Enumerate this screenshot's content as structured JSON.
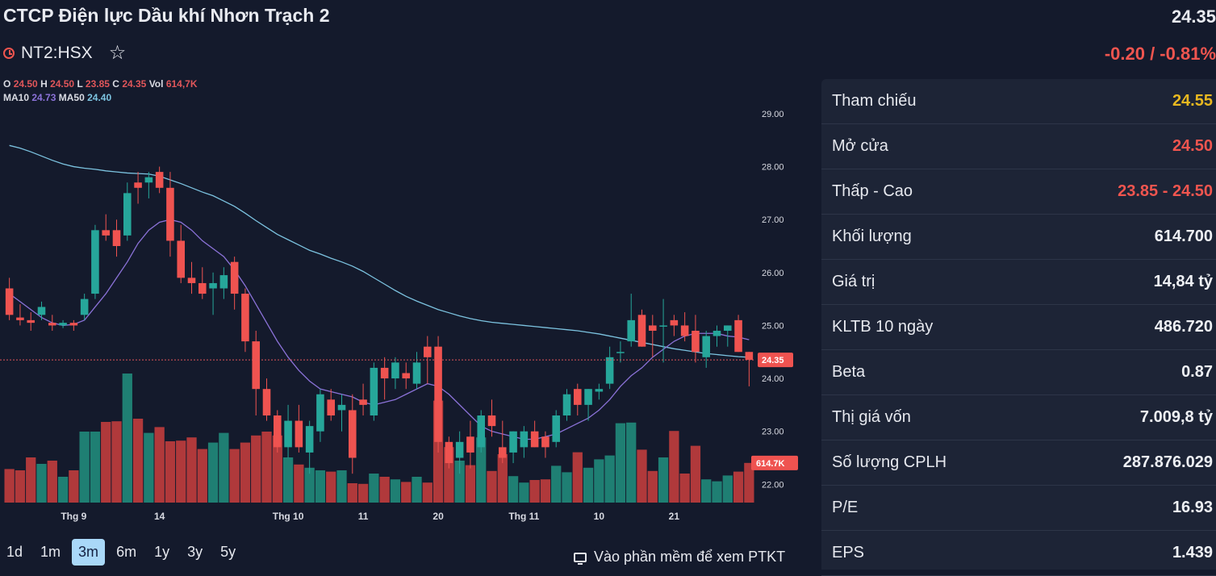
{
  "header": {
    "company": "CTCP Điện lực Dầu khí Nhơn Trạch 2",
    "price": "24.35",
    "symbol": "NT2:HSX",
    "change": "-0.20 / -0.81%"
  },
  "colors": {
    "up": "#26a69a",
    "down": "#ef5350",
    "ma10": "#8b72d8",
    "ma50": "#7cc3e0"
  },
  "legend": {
    "o_label": "O",
    "o": "24.50",
    "h_label": "H",
    "h": "24.50",
    "l_label": "L",
    "l": "23.85",
    "c_label": "C",
    "c": "24.35",
    "vol_label": "Vol",
    "vol": "614,7K",
    "ma10_label": "MA10",
    "ma10": "24.73",
    "ma50_label": "MA50",
    "ma50": "24.40"
  },
  "chart_data": {
    "type": "candlestick",
    "ylim": [
      21.7,
      29.7
    ],
    "y_ticks": [
      "29.00",
      "28.00",
      "27.00",
      "26.00",
      "25.00",
      "24.00",
      "23.00",
      "22.00"
    ],
    "x_ticks": [
      {
        "label": "Thg 9",
        "index": 6
      },
      {
        "label": "14",
        "index": 14
      },
      {
        "label": "Thg 10",
        "index": 26
      },
      {
        "label": "11",
        "index": 33
      },
      {
        "label": "20",
        "index": 40
      },
      {
        "label": "Thg 11",
        "index": 48
      },
      {
        "label": "10",
        "index": 55
      },
      {
        "label": "21",
        "index": 62
      }
    ],
    "last_price_label": "24.35",
    "last_price": 24.35,
    "last_volume_label": "614.7K",
    "candles": [
      {
        "o": 25.7,
        "h": 25.9,
        "l": 25.1,
        "c": 25.2,
        "v": 520
      },
      {
        "o": 25.15,
        "h": 25.4,
        "l": 25.0,
        "c": 25.1,
        "v": 500
      },
      {
        "o": 25.1,
        "h": 25.25,
        "l": 24.9,
        "c": 25.05,
        "v": 700
      },
      {
        "o": 25.2,
        "h": 25.45,
        "l": 25.1,
        "c": 25.35,
        "v": 600
      },
      {
        "o": 25.05,
        "h": 25.2,
        "l": 24.9,
        "c": 25.0,
        "v": 650
      },
      {
        "o": 25.0,
        "h": 25.1,
        "l": 24.95,
        "c": 25.05,
        "v": 400
      },
      {
        "o": 25.05,
        "h": 25.1,
        "l": 24.9,
        "c": 25.0,
        "v": 500
      },
      {
        "o": 25.2,
        "h": 25.6,
        "l": 25.1,
        "c": 25.5,
        "v": 1100
      },
      {
        "o": 25.6,
        "h": 26.9,
        "l": 25.5,
        "c": 26.8,
        "v": 1100
      },
      {
        "o": 26.8,
        "h": 27.1,
        "l": 26.6,
        "c": 26.7,
        "v": 1250
      },
      {
        "o": 26.8,
        "h": 27.0,
        "l": 26.3,
        "c": 26.5,
        "v": 1260
      },
      {
        "o": 26.7,
        "h": 27.7,
        "l": 26.6,
        "c": 27.5,
        "v": 2000
      },
      {
        "o": 27.7,
        "h": 27.9,
        "l": 27.3,
        "c": 27.6,
        "v": 1300
      },
      {
        "o": 27.7,
        "h": 27.9,
        "l": 27.4,
        "c": 27.8,
        "v": 1080
      },
      {
        "o": 27.9,
        "h": 28.0,
        "l": 27.5,
        "c": 27.6,
        "v": 1170
      },
      {
        "o": 27.6,
        "h": 27.9,
        "l": 26.3,
        "c": 26.6,
        "v": 950
      },
      {
        "o": 26.6,
        "h": 26.9,
        "l": 25.8,
        "c": 25.9,
        "v": 960
      },
      {
        "o": 25.9,
        "h": 26.2,
        "l": 25.6,
        "c": 25.8,
        "v": 1010
      },
      {
        "o": 25.8,
        "h": 26.1,
        "l": 25.5,
        "c": 25.6,
        "v": 830
      },
      {
        "o": 25.7,
        "h": 26.0,
        "l": 25.2,
        "c": 25.8,
        "v": 930
      },
      {
        "o": 25.7,
        "h": 26.1,
        "l": 25.5,
        "c": 25.95,
        "v": 1080
      },
      {
        "o": 26.2,
        "h": 26.3,
        "l": 25.3,
        "c": 25.6,
        "v": 830
      },
      {
        "o": 25.6,
        "h": 25.7,
        "l": 24.5,
        "c": 24.7,
        "v": 930
      },
      {
        "o": 24.7,
        "h": 24.9,
        "l": 23.3,
        "c": 23.8,
        "v": 1040
      },
      {
        "o": 23.8,
        "h": 24.0,
        "l": 23.2,
        "c": 23.3,
        "v": 1100
      },
      {
        "o": 23.3,
        "h": 23.4,
        "l": 22.6,
        "c": 22.7,
        "v": 1040
      },
      {
        "o": 22.7,
        "h": 23.5,
        "l": 22.5,
        "c": 23.2,
        "v": 700
      },
      {
        "o": 23.2,
        "h": 23.5,
        "l": 22.6,
        "c": 22.7,
        "v": 590
      },
      {
        "o": 22.6,
        "h": 23.2,
        "l": 22.2,
        "c": 23.1,
        "v": 540
      },
      {
        "o": 23.0,
        "h": 23.8,
        "l": 22.8,
        "c": 23.7,
        "v": 500
      },
      {
        "o": 23.6,
        "h": 23.8,
        "l": 23.2,
        "c": 23.3,
        "v": 480
      },
      {
        "o": 23.4,
        "h": 23.7,
        "l": 23.0,
        "c": 23.5,
        "v": 500
      },
      {
        "o": 23.4,
        "h": 23.7,
        "l": 22.2,
        "c": 22.5,
        "v": 300
      },
      {
        "o": 23.6,
        "h": 23.9,
        "l": 23.3,
        "c": 23.5,
        "v": 290
      },
      {
        "o": 23.3,
        "h": 24.3,
        "l": 23.2,
        "c": 24.2,
        "v": 450
      },
      {
        "o": 24.2,
        "h": 24.4,
        "l": 23.6,
        "c": 24.0,
        "v": 400
      },
      {
        "o": 24.0,
        "h": 24.4,
        "l": 23.8,
        "c": 24.3,
        "v": 360
      },
      {
        "o": 24.1,
        "h": 24.3,
        "l": 23.8,
        "c": 24.0,
        "v": 320
      },
      {
        "o": 23.9,
        "h": 24.5,
        "l": 23.8,
        "c": 24.3,
        "v": 400
      },
      {
        "o": 24.6,
        "h": 24.8,
        "l": 23.9,
        "c": 24.4,
        "v": 310
      },
      {
        "o": 24.6,
        "h": 24.8,
        "l": 22.6,
        "c": 22.8,
        "v": 1580
      },
      {
        "o": 22.8,
        "h": 22.9,
        "l": 22.3,
        "c": 22.4,
        "v": 860
      },
      {
        "o": 22.5,
        "h": 23.0,
        "l": 22.2,
        "c": 22.8,
        "v": 650
      },
      {
        "o": 22.9,
        "h": 23.2,
        "l": 22.3,
        "c": 22.6,
        "v": 580
      },
      {
        "o": 22.7,
        "h": 23.4,
        "l": 22.6,
        "c": 23.3,
        "v": 1010
      },
      {
        "o": 23.3,
        "h": 23.6,
        "l": 22.9,
        "c": 23.1,
        "v": 490
      },
      {
        "o": 22.7,
        "h": 23.2,
        "l": 22.4,
        "c": 22.5,
        "v": 750
      },
      {
        "o": 22.6,
        "h": 23.0,
        "l": 22.4,
        "c": 23.0,
        "v": 410
      },
      {
        "o": 22.7,
        "h": 23.1,
        "l": 22.5,
        "c": 23.0,
        "v": 310
      },
      {
        "o": 23.0,
        "h": 23.2,
        "l": 22.7,
        "c": 22.7,
        "v": 350
      },
      {
        "o": 22.9,
        "h": 23.0,
        "l": 22.5,
        "c": 22.7,
        "v": 360
      },
      {
        "o": 22.8,
        "h": 23.4,
        "l": 22.7,
        "c": 23.3,
        "v": 570
      },
      {
        "o": 23.3,
        "h": 23.8,
        "l": 23.2,
        "c": 23.7,
        "v": 470
      },
      {
        "o": 23.8,
        "h": 23.9,
        "l": 23.3,
        "c": 23.5,
        "v": 780
      },
      {
        "o": 23.5,
        "h": 23.8,
        "l": 23.2,
        "c": 23.8,
        "v": 540
      },
      {
        "o": 23.75,
        "h": 23.9,
        "l": 23.6,
        "c": 23.8,
        "v": 670
      },
      {
        "o": 23.9,
        "h": 24.6,
        "l": 23.8,
        "c": 24.4,
        "v": 730
      },
      {
        "o": 24.5,
        "h": 24.7,
        "l": 24.3,
        "c": 24.5,
        "v": 1230
      },
      {
        "o": 24.7,
        "h": 25.6,
        "l": 24.6,
        "c": 25.1,
        "v": 1240
      },
      {
        "o": 25.2,
        "h": 25.3,
        "l": 24.6,
        "c": 24.6,
        "v": 820
      },
      {
        "o": 25.0,
        "h": 25.2,
        "l": 24.4,
        "c": 24.9,
        "v": 490
      },
      {
        "o": 25.0,
        "h": 25.5,
        "l": 24.3,
        "c": 25.0,
        "v": 700
      },
      {
        "o": 25.1,
        "h": 25.2,
        "l": 24.8,
        "c": 25.0,
        "v": 1110
      },
      {
        "o": 25.0,
        "h": 25.25,
        "l": 24.7,
        "c": 24.8,
        "v": 450
      },
      {
        "o": 24.9,
        "h": 25.2,
        "l": 24.3,
        "c": 24.5,
        "v": 880
      },
      {
        "o": 24.4,
        "h": 24.9,
        "l": 24.2,
        "c": 24.8,
        "v": 360
      },
      {
        "o": 24.8,
        "h": 25.0,
        "l": 24.6,
        "c": 24.9,
        "v": 330
      },
      {
        "o": 24.9,
        "h": 25.0,
        "l": 24.6,
        "c": 25.0,
        "v": 420
      },
      {
        "o": 25.1,
        "h": 25.2,
        "l": 24.5,
        "c": 24.5,
        "v": 480
      },
      {
        "o": 24.5,
        "h": 24.5,
        "l": 23.85,
        "c": 24.35,
        "v": 614.7
      }
    ],
    "ma10": [
      25.6,
      25.45,
      25.3,
      25.15,
      25.05,
      25.0,
      25.02,
      25.1,
      25.35,
      25.6,
      25.9,
      26.2,
      26.55,
      26.8,
      26.95,
      27.0,
      26.95,
      26.8,
      26.6,
      26.45,
      26.3,
      26.05,
      25.75,
      25.4,
      25.05,
      24.7,
      24.4,
      24.15,
      23.95,
      23.8,
      23.75,
      23.7,
      23.65,
      23.55,
      23.5,
      23.55,
      23.6,
      23.7,
      23.8,
      23.9,
      23.85,
      23.7,
      23.5,
      23.3,
      23.1,
      23.0,
      22.95,
      22.9,
      22.85,
      22.85,
      22.9,
      22.95,
      23.05,
      23.15,
      23.25,
      23.4,
      23.6,
      23.85,
      24.05,
      24.2,
      24.4,
      24.55,
      24.7,
      24.8,
      24.85,
      24.85,
      24.85,
      24.8,
      24.78,
      24.73
    ],
    "ma50": [
      28.4,
      28.35,
      28.28,
      28.2,
      28.12,
      28.05,
      28.0,
      27.97,
      27.95,
      27.92,
      27.9,
      27.88,
      27.87,
      27.86,
      27.82,
      27.75,
      27.68,
      27.6,
      27.52,
      27.45,
      27.35,
      27.25,
      27.12,
      26.98,
      26.85,
      26.72,
      26.62,
      26.52,
      26.42,
      26.35,
      26.27,
      26.2,
      26.12,
      26.02,
      25.9,
      25.78,
      25.66,
      25.55,
      25.46,
      25.38,
      25.3,
      25.24,
      25.18,
      25.13,
      25.09,
      25.06,
      25.04,
      25.02,
      25.0,
      24.98,
      24.96,
      24.94,
      24.92,
      24.9,
      24.87,
      24.84,
      24.8,
      24.76,
      24.72,
      24.68,
      24.64,
      24.6,
      24.56,
      24.53,
      24.5,
      24.47,
      24.45,
      24.43,
      24.41,
      24.4
    ]
  },
  "periods": [
    "1d",
    "1m",
    "3m",
    "6m",
    "1y",
    "3y",
    "5y"
  ],
  "active_period": "3m",
  "ptkt_label": "Vào phần mềm để xem PTKT",
  "stats": [
    {
      "label": "Tham chiếu",
      "value": "24.55",
      "color": "yellow"
    },
    {
      "label": "Mở cửa",
      "value": "24.50",
      "color": "red"
    },
    {
      "label": "Thấp - Cao",
      "value": "23.85 - 24.50",
      "color": "red"
    },
    {
      "label": "Khối lượng",
      "value": "614.700",
      "color": ""
    },
    {
      "label": "Giá trị",
      "value": "14,84 tỷ",
      "color": ""
    },
    {
      "label": "KLTB 10 ngày",
      "value": "486.720",
      "color": ""
    },
    {
      "label": "Beta",
      "value": "0.87",
      "color": ""
    },
    {
      "label": "Thị giá vốn",
      "value": "7.009,8 tỷ",
      "color": ""
    },
    {
      "label": "Số lượng CPLH",
      "value": "287.876.029",
      "color": ""
    },
    {
      "label": "P/E",
      "value": "16.93",
      "color": ""
    },
    {
      "label": "EPS",
      "value": "1.439",
      "color": ""
    }
  ]
}
